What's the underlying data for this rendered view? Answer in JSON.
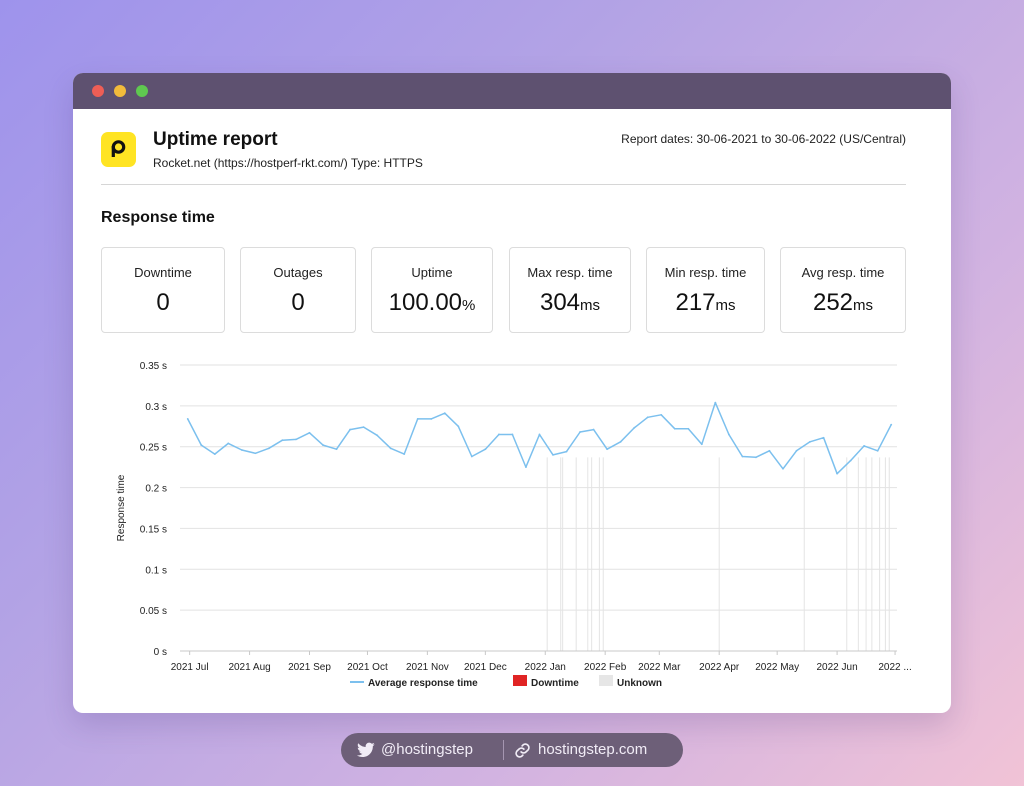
{
  "report": {
    "title": "Uptime report",
    "subtitle": "Rocket.net (https://hostperf-rkt.com/) Type: HTTPS",
    "dates": "Report dates: 30-06-2021 to 30-06-2022 (US/Central)",
    "logo_letter": "P",
    "logo_color": "#ffe423"
  },
  "section_title": "Response time",
  "stats": [
    {
      "label": "Downtime",
      "value": "0",
      "unit": ""
    },
    {
      "label": "Outages",
      "value": "0",
      "unit": ""
    },
    {
      "label": "Uptime",
      "value": "100.00",
      "unit": "%"
    },
    {
      "label": "Max resp. time",
      "value": "304",
      "unit": "ms"
    },
    {
      "label": "Min resp. time",
      "value": "217",
      "unit": "ms"
    },
    {
      "label": "Avg resp. time",
      "value": "252",
      "unit": "ms"
    }
  ],
  "chart_data": {
    "type": "line",
    "ylabel": "Response time",
    "ylim": [
      0,
      0.35
    ],
    "yticks": [
      0,
      0.05,
      0.1,
      0.15,
      0.2,
      0.25,
      0.3,
      0.35
    ],
    "ytick_labels": [
      "0 s",
      "0.05 s",
      "0.1 s",
      "0.15 s",
      "0.2 s",
      "0.25 s",
      "0.3 s",
      "0.35 s"
    ],
    "xlim": [
      "2021-06-26",
      "2022-07-02"
    ],
    "x_tick_labels": [
      {
        "date": "2021-07-01",
        "label": "2021 Jul"
      },
      {
        "date": "2021-08-01",
        "label": "2021 Aug"
      },
      {
        "date": "2021-09-01",
        "label": "2021 Sep"
      },
      {
        "date": "2021-10-01",
        "label": "2021 Oct"
      },
      {
        "date": "2021-11-01",
        "label": "2021 Nov"
      },
      {
        "date": "2021-12-01",
        "label": "2021 Dec"
      },
      {
        "date": "2022-01-01",
        "label": "2022 Jan"
      },
      {
        "date": "2022-02-01",
        "label": "2022 Feb"
      },
      {
        "date": "2022-03-01",
        "label": "2022 Mar"
      },
      {
        "date": "2022-04-01",
        "label": "2022 Apr"
      },
      {
        "date": "2022-05-01",
        "label": "2022 May"
      },
      {
        "date": "2022-06-01",
        "label": "2022 Jun"
      },
      {
        "date": "2022-07-01",
        "label": "2022 ..."
      }
    ],
    "grid": true,
    "legend_position": "bottom",
    "series": [
      {
        "name": "Average response time",
        "color": "#7cc0ee",
        "x": [
          "2021-06-30",
          "2021-07-07",
          "2021-07-14",
          "2021-07-21",
          "2021-07-28",
          "2021-08-04",
          "2021-08-11",
          "2021-08-18",
          "2021-08-25",
          "2021-09-01",
          "2021-09-08",
          "2021-09-15",
          "2021-09-22",
          "2021-09-29",
          "2021-10-06",
          "2021-10-13",
          "2021-10-20",
          "2021-10-27",
          "2021-11-03",
          "2021-11-10",
          "2021-11-17",
          "2021-11-24",
          "2021-12-01",
          "2021-12-08",
          "2021-12-15",
          "2021-12-22",
          "2021-12-29",
          "2022-01-05",
          "2022-01-12",
          "2022-01-19",
          "2022-01-26",
          "2022-02-02",
          "2022-02-09",
          "2022-02-16",
          "2022-02-23",
          "2022-03-02",
          "2022-03-09",
          "2022-03-16",
          "2022-03-23",
          "2022-03-30",
          "2022-04-06",
          "2022-04-13",
          "2022-04-20",
          "2022-04-27",
          "2022-05-04",
          "2022-05-11",
          "2022-05-18",
          "2022-05-25",
          "2022-06-01",
          "2022-06-08",
          "2022-06-15",
          "2022-06-22",
          "2022-06-29"
        ],
        "y": [
          0.284,
          0.252,
          0.241,
          0.254,
          0.246,
          0.242,
          0.248,
          0.258,
          0.259,
          0.267,
          0.252,
          0.247,
          0.271,
          0.274,
          0.264,
          0.248,
          0.241,
          0.284,
          0.284,
          0.291,
          0.275,
          0.238,
          0.247,
          0.265,
          0.265,
          0.225,
          0.265,
          0.24,
          0.244,
          0.268,
          0.271,
          0.247,
          0.256,
          0.273,
          0.286,
          0.289,
          0.272,
          0.272,
          0.253,
          0.304,
          0.265,
          0.238,
          0.237,
          0.245,
          0.223,
          0.245,
          0.256,
          0.261,
          0.217,
          0.233,
          0.251,
          0.245,
          0.277
        ]
      }
    ],
    "unknown_periods": [
      "2022-01-02",
      "2022-01-09",
      "2022-01-10",
      "2022-01-17",
      "2022-01-23",
      "2022-01-25",
      "2022-01-29",
      "2022-01-31",
      "2022-04-01",
      "2022-05-15",
      "2022-06-06",
      "2022-06-12",
      "2022-06-16",
      "2022-06-19",
      "2022-06-23",
      "2022-06-26",
      "2022-06-28"
    ],
    "legend": [
      {
        "label": "Average response time",
        "kind": "line",
        "color": "#7cc0ee"
      },
      {
        "label": "Downtime",
        "kind": "box",
        "color": "#e02424"
      },
      {
        "label": "Unknown",
        "kind": "box",
        "color": "#e6e6e6"
      }
    ]
  },
  "social": {
    "handle": "@hostingstep",
    "site": "hostingstep.com"
  }
}
